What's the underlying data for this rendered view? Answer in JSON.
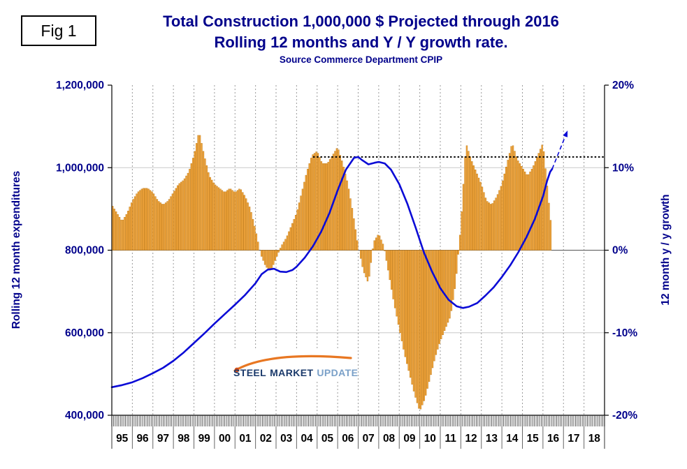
{
  "figure_label": "Fig 1",
  "title": {
    "line1": "Total Construction 1,000,000 $ Projected through 2016",
    "line2": "Rolling 12 months and Y / Y growth rate.",
    "subtitle": "Source Commerce Department CPIP"
  },
  "axes": {
    "left_title": "Rolling 12 month expenditures",
    "right_title": "12 month y / y growth"
  },
  "logo": {
    "word1": "STEEL",
    "word2": "MARKET",
    "word3": "UPDATE"
  },
  "colors": {
    "navy": "#00008B",
    "bar_fill": "#F6A73B",
    "bar_stroke": "#BE7D1E",
    "line": "#0B0BD6",
    "grid_light": "#C8C8C8",
    "grid_dash": "#9A9A9A",
    "zero_line": "#555555",
    "axis": "#000000",
    "year_label": "#000000",
    "reference": "#000000",
    "logo_navy": "#1B3A6B",
    "logo_light": "#7AA0C8",
    "logo_orange": "#E87722",
    "logo_dot": "#D14F1C"
  },
  "chart_data": {
    "type": "combo",
    "title": "Total Construction 1,000,000 $ Projected through 2016 — Rolling 12 months and Y / Y growth rate",
    "x_axis": {
      "unit": "year",
      "start": 1995,
      "end": 2019,
      "minor_ticks": "monthly",
      "year_labels": [
        "95",
        "96",
        "97",
        "98",
        "99",
        "00",
        "01",
        "02",
        "03",
        "04",
        "05",
        "06",
        "07",
        "08",
        "09",
        "10",
        "11",
        "12",
        "13",
        "14",
        "15",
        "16",
        "17",
        "18"
      ]
    },
    "left_axis": {
      "title": "Rolling 12 month expenditures",
      "min": 400000,
      "max": 1200000,
      "tick_step": 200000,
      "ticks": [
        {
          "value": 400000,
          "label": "400,000"
        },
        {
          "value": 600000,
          "label": "600,000"
        },
        {
          "value": 800000,
          "label": "800,000"
        },
        {
          "value": 1000000,
          "label": "1,000,000"
        },
        {
          "value": 1200000,
          "label": "1,200,000"
        }
      ]
    },
    "right_axis": {
      "title": "12 month y / y growth",
      "min": -20,
      "max": 20,
      "tick_step": 10,
      "ticks": [
        {
          "value": -20,
          "label": "-20%"
        },
        {
          "value": -10,
          "label": "-10%"
        },
        {
          "value": 0,
          "label": "0%"
        },
        {
          "value": 10,
          "label": "10%"
        },
        {
          "value": 20,
          "label": "20%"
        }
      ]
    },
    "series": [
      {
        "name": "12 month y / y growth rate",
        "type": "bar",
        "axis": "right",
        "unit": "percent",
        "points": [
          [
            1995.0,
            5.5
          ],
          [
            1995.25,
            4.5
          ],
          [
            1995.5,
            3.5
          ],
          [
            1995.75,
            4.5
          ],
          [
            1996.0,
            6.0
          ],
          [
            1996.25,
            7.0
          ],
          [
            1996.5,
            7.5
          ],
          [
            1996.75,
            7.5
          ],
          [
            1997.0,
            7.0
          ],
          [
            1997.25,
            6.0
          ],
          [
            1997.5,
            5.5
          ],
          [
            1997.75,
            6.0
          ],
          [
            1998.0,
            7.0
          ],
          [
            1998.25,
            8.0
          ],
          [
            1998.5,
            8.5
          ],
          [
            1998.75,
            9.5
          ],
          [
            1999.0,
            11.5
          ],
          [
            1999.25,
            14.4
          ],
          [
            1999.5,
            11.5
          ],
          [
            1999.75,
            9.0
          ],
          [
            2000.0,
            8.0
          ],
          [
            2000.25,
            7.5
          ],
          [
            2000.5,
            7.0
          ],
          [
            2000.75,
            7.5
          ],
          [
            2001.0,
            7.0
          ],
          [
            2001.25,
            7.5
          ],
          [
            2001.5,
            6.5
          ],
          [
            2001.75,
            5.0
          ],
          [
            2002.0,
            2.5
          ],
          [
            2002.25,
            -0.5
          ],
          [
            2002.5,
            -2.0
          ],
          [
            2002.75,
            -2.5
          ],
          [
            2003.0,
            -1.0
          ],
          [
            2003.25,
            0.5
          ],
          [
            2003.5,
            1.5
          ],
          [
            2003.75,
            3.0
          ],
          [
            2004.0,
            4.5
          ],
          [
            2004.25,
            7.0
          ],
          [
            2004.5,
            9.5
          ],
          [
            2004.75,
            11.5
          ],
          [
            2005.0,
            12.0
          ],
          [
            2005.25,
            10.5
          ],
          [
            2005.5,
            10.5
          ],
          [
            2005.75,
            11.5
          ],
          [
            2006.0,
            12.5
          ],
          [
            2006.25,
            10.5
          ],
          [
            2006.5,
            8.0
          ],
          [
            2006.75,
            4.5
          ],
          [
            2007.0,
            0.5
          ],
          [
            2007.25,
            -2.5
          ],
          [
            2007.5,
            -4.0
          ],
          [
            2007.75,
            1.0
          ],
          [
            2008.0,
            2.0
          ],
          [
            2008.25,
            0.5
          ],
          [
            2008.5,
            -3.0
          ],
          [
            2008.75,
            -6.5
          ],
          [
            2009.0,
            -9.5
          ],
          [
            2009.25,
            -12.5
          ],
          [
            2009.5,
            -15.0
          ],
          [
            2009.75,
            -17.5
          ],
          [
            2010.0,
            -19.5
          ],
          [
            2010.25,
            -18.0
          ],
          [
            2010.5,
            -15.5
          ],
          [
            2010.75,
            -13.0
          ],
          [
            2011.0,
            -11.0
          ],
          [
            2011.25,
            -9.5
          ],
          [
            2011.5,
            -8.0
          ],
          [
            2011.75,
            -4.0
          ],
          [
            2012.0,
            3.0
          ],
          [
            2012.25,
            13.0
          ],
          [
            2012.5,
            11.0
          ],
          [
            2012.75,
            9.5
          ],
          [
            2013.0,
            8.0
          ],
          [
            2013.25,
            6.0
          ],
          [
            2013.5,
            5.5
          ],
          [
            2013.75,
            6.5
          ],
          [
            2014.0,
            8.0
          ],
          [
            2014.25,
            10.5
          ],
          [
            2014.5,
            13.0
          ],
          [
            2014.75,
            11.0
          ],
          [
            2015.0,
            10.0
          ],
          [
            2015.25,
            9.0
          ],
          [
            2015.5,
            10.0
          ],
          [
            2015.75,
            11.5
          ],
          [
            2016.0,
            13.0
          ],
          [
            2016.2,
            8.0
          ],
          [
            2016.4,
            3.0
          ]
        ]
      },
      {
        "name": "Rolling 12 month expenditures",
        "type": "line",
        "axis": "left",
        "unit": "thousand dollars",
        "points": [
          [
            1995.0,
            468000
          ],
          [
            1995.5,
            473000
          ],
          [
            1996.0,
            480000
          ],
          [
            1996.5,
            490000
          ],
          [
            1997.0,
            502000
          ],
          [
            1997.5,
            515000
          ],
          [
            1998.0,
            532000
          ],
          [
            1998.5,
            552000
          ],
          [
            1999.0,
            575000
          ],
          [
            1999.5,
            598000
          ],
          [
            2000.0,
            622000
          ],
          [
            2000.5,
            645000
          ],
          [
            2001.0,
            668000
          ],
          [
            2001.5,
            692000
          ],
          [
            2002.0,
            720000
          ],
          [
            2002.3,
            742000
          ],
          [
            2002.6,
            753000
          ],
          [
            2002.9,
            755000
          ],
          [
            2003.2,
            748000
          ],
          [
            2003.5,
            747000
          ],
          [
            2003.8,
            752000
          ],
          [
            2004.0,
            760000
          ],
          [
            2004.4,
            782000
          ],
          [
            2004.8,
            810000
          ],
          [
            2005.2,
            845000
          ],
          [
            2005.6,
            890000
          ],
          [
            2006.0,
            945000
          ],
          [
            2006.4,
            995000
          ],
          [
            2006.8,
            1024000
          ],
          [
            2007.0,
            1026000
          ],
          [
            2007.2,
            1018000
          ],
          [
            2007.5,
            1008000
          ],
          [
            2007.8,
            1012000
          ],
          [
            2008.0,
            1014000
          ],
          [
            2008.3,
            1010000
          ],
          [
            2008.6,
            995000
          ],
          [
            2009.0,
            960000
          ],
          [
            2009.4,
            912000
          ],
          [
            2009.8,
            855000
          ],
          [
            2010.2,
            795000
          ],
          [
            2010.6,
            748000
          ],
          [
            2011.0,
            708000
          ],
          [
            2011.4,
            680000
          ],
          [
            2011.8,
            664000
          ],
          [
            2012.1,
            660000
          ],
          [
            2012.4,
            663000
          ],
          [
            2012.8,
            672000
          ],
          [
            2013.2,
            690000
          ],
          [
            2013.6,
            710000
          ],
          [
            2014.0,
            735000
          ],
          [
            2014.4,
            763000
          ],
          [
            2014.8,
            795000
          ],
          [
            2015.2,
            832000
          ],
          [
            2015.6,
            875000
          ],
          [
            2016.0,
            930000
          ],
          [
            2016.2,
            968000
          ],
          [
            2016.35,
            990000
          ],
          [
            2016.45,
            997000
          ]
        ]
      }
    ],
    "reference_line": {
      "axis": "right",
      "value": 11.3,
      "from_x": 2004.8,
      "to_x": 2019.0,
      "style": "dotted",
      "color": "#000000"
    },
    "projection_arrow": {
      "axis": "left",
      "from": [
        2016.45,
        997000
      ],
      "to": [
        2017.2,
        1090000
      ],
      "style": "dashed"
    }
  }
}
